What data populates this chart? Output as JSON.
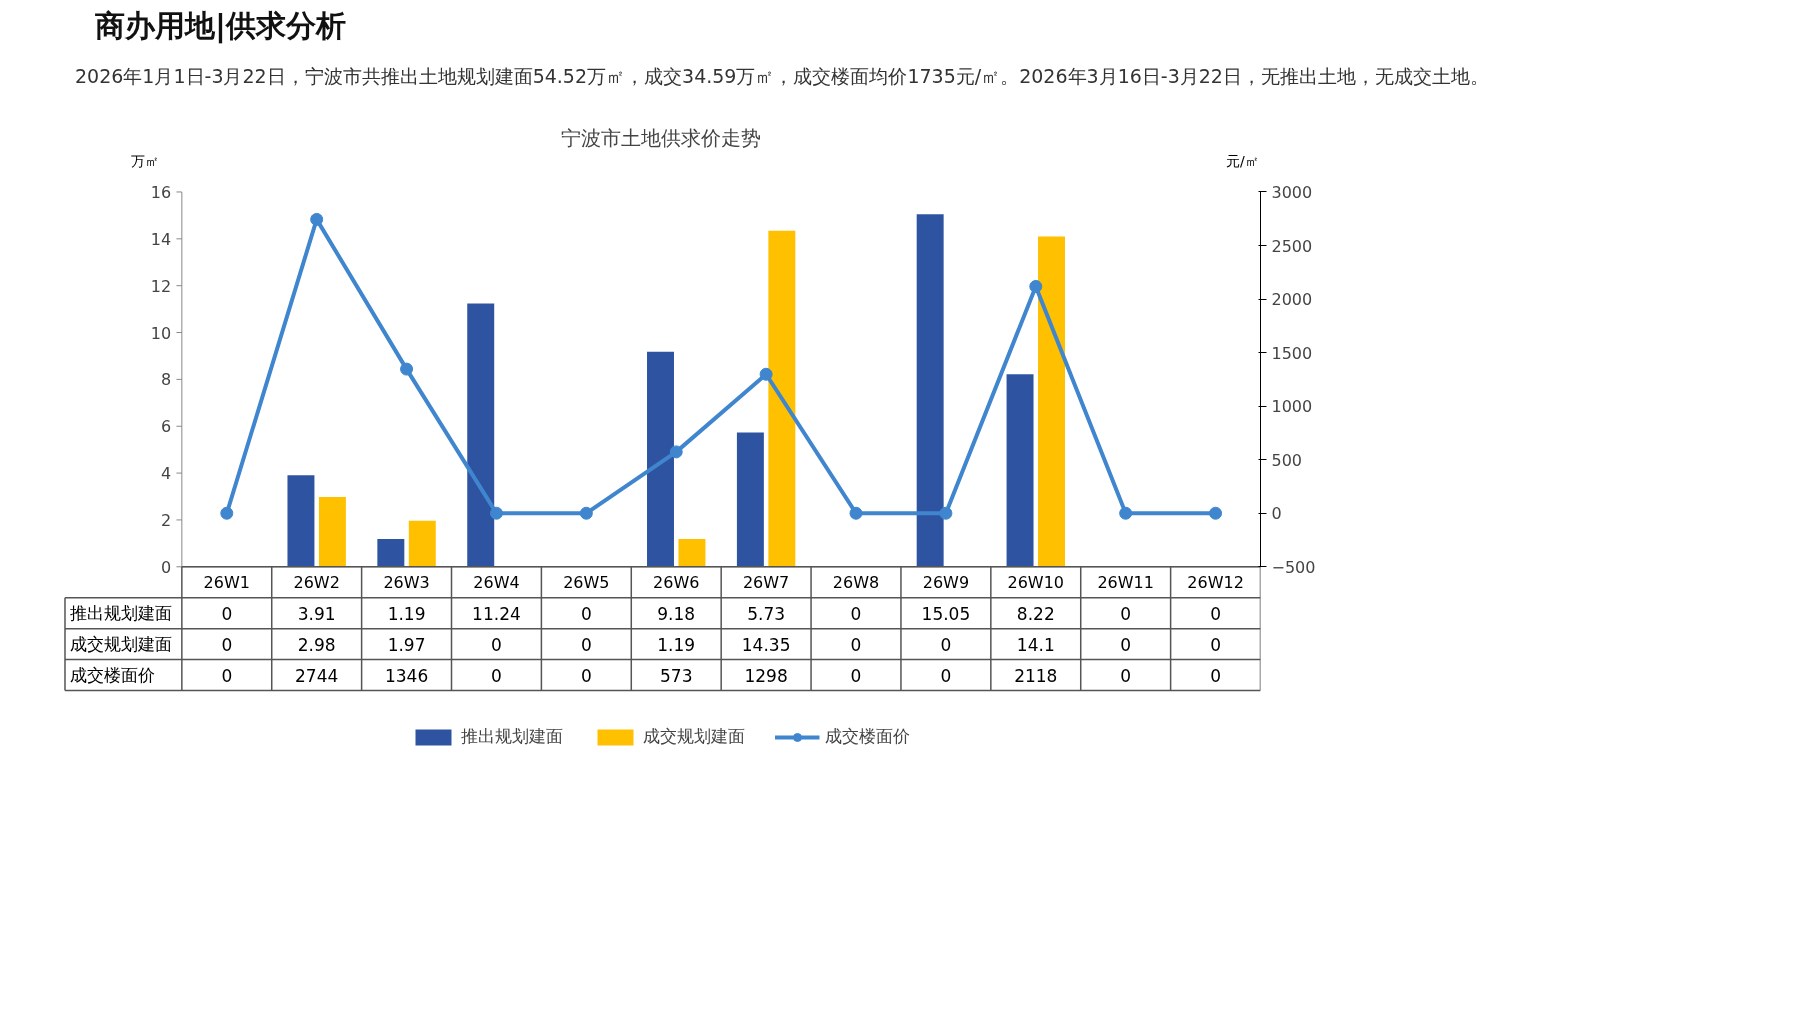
{
  "chart_data": {
    "type": "bar",
    "title": "宁波市土地供求价走势",
    "subtitle": "2026年1月1日-3月22日，宁波市共推出土地规划建面54.52万㎡，成交34.59万㎡，成交楼面均价1735元/㎡。2026年3月16日-3月22日，无推出土地，无成交土地。",
    "annotations": [
      "商办用地|供求分析"
    ],
    "ylabel": "万㎡",
    "y2label": "元/㎡",
    "categories": [
      "26W1",
      "26W2",
      "26W3",
      "26W4",
      "26W5",
      "26W6",
      "26W7",
      "26W8",
      "26W9",
      "26W10",
      "26W11",
      "26W12"
    ],
    "series": [
      {
        "name": "推出规划建面",
        "color": "#2e54a1",
        "values": [
          0,
          3.91,
          1.19,
          11.24,
          0,
          9.18,
          5.73,
          0,
          15.05,
          8.22,
          0,
          0
        ]
      },
      {
        "name": "成交规划建面",
        "color": "#ffc000",
        "values": [
          0,
          2.98,
          1.97,
          0,
          0,
          1.19,
          14.35,
          0,
          0,
          14.1,
          0,
          0
        ]
      },
      {
        "name": "成交楼面价",
        "type": "line",
        "axis": "y2",
        "color": "#3f86cf",
        "values": [
          0,
          2744,
          1346,
          0,
          0,
          573,
          1298,
          0,
          0,
          2118,
          0,
          0
        ]
      }
    ],
    "ylim": [
      0,
      16
    ],
    "yticks": [
      0,
      2,
      4,
      6,
      8,
      10,
      12,
      14,
      16
    ],
    "y2lim": [
      -500,
      3000
    ],
    "y2ticks": [
      -500,
      0,
      500,
      1000,
      1500,
      2000,
      2500,
      3000
    ],
    "marker": "circle",
    "data_labels": true,
    "legend": "bottom"
  }
}
